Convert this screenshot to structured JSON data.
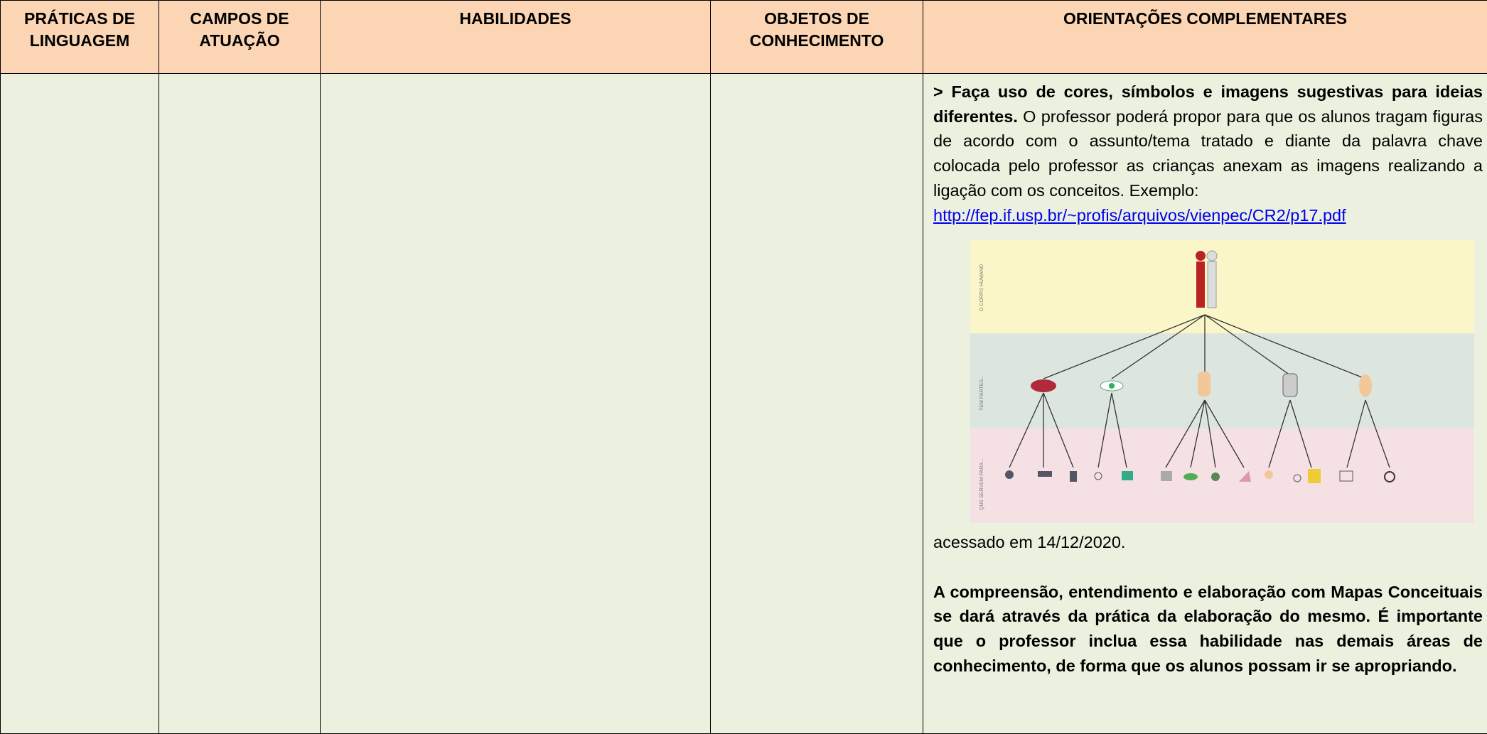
{
  "table": {
    "headers": [
      "PRÁTICAS DE LINGUAGEM",
      "CAMPOS DE ATUAÇÃO",
      "HABILIDADES",
      "OBJETOS DE CONHECIMENTO",
      "ORIENTAÇÕES COMPLEMENTARES"
    ],
    "rows": [
      {
        "cells": [
          "",
          "",
          "",
          "",
          ""
        ]
      }
    ]
  },
  "guidance": {
    "intro_bold": "> Faça uso de cores, símbolos e imagens sugestivas para ideias diferentes.",
    "intro_text": "O professor poderá propor para que os alunos tragam figuras de acordo com o assunto/tema tratado e diante da palavra chave colocada pelo professor as crianças anexam as imagens realizando a ligação com os conceitos. Exemplo:",
    "link": "http://fep.if.usp.br/~profis/arquivos/vienpec/CR2/p17.pdf",
    "figure_labels": [
      "O CORPO HUMANO",
      "TEM PARTES...",
      "QUE SERVEM PARA..."
    ],
    "accessed": "acessado em 14/12/2020.",
    "closing_bold": "A compreensão, entendimento e elaboração com Mapas Conceituais se dará através da prática da elaboração do mesmo. É importante que o professor inclua essa habilidade nas demais áreas de conhecimento, de forma que os alunos possam ir se apropriando."
  }
}
